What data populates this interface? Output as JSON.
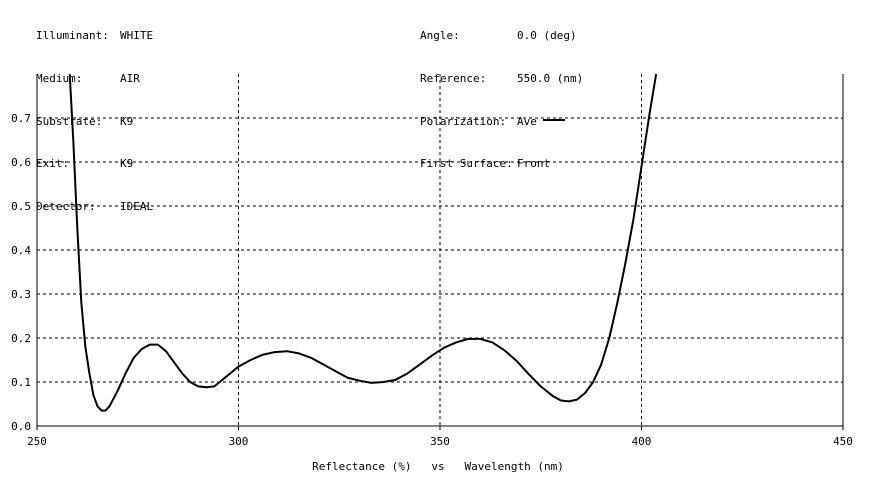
{
  "header": {
    "left": [
      {
        "key": "Illuminant:",
        "value": "WHITE"
      },
      {
        "key": "Medium:",
        "value": "AIR"
      },
      {
        "key": "Substrate:",
        "value": "K9"
      },
      {
        "key": "Exit:",
        "value": "K9"
      },
      {
        "key": "Detector:",
        "value": "IDEAL"
      }
    ],
    "right": [
      {
        "key": "Angle:",
        "value": "0.0 (deg)"
      },
      {
        "key": "Reference:",
        "value": "550.0 (nm)"
      },
      {
        "key": "Polarization:",
        "value": "Ave"
      },
      {
        "key": "First Surface:",
        "value": "Front"
      }
    ]
  },
  "chart_data": {
    "type": "line",
    "title": "",
    "xlabel": "Reflectance (%)   vs   Wavelength (nm)",
    "ylabel": "",
    "xlim": [
      250,
      450
    ],
    "ylim": [
      0.0,
      0.7
    ],
    "x_ticks": [
      250,
      300,
      350,
      400,
      450
    ],
    "x_tick_labels": [
      "250",
      "300",
      "350",
      "400",
      "450"
    ],
    "y_ticks": [
      0.0,
      0.1,
      0.2,
      0.3,
      0.4,
      0.5,
      0.6,
      0.7
    ],
    "y_tick_labels": [
      "0.0",
      "0.1",
      "0.2",
      "0.3",
      "0.4",
      "0.5",
      "0.6",
      "0.7"
    ],
    "grid": true,
    "legend": "Ave",
    "line_color": "#000000",
    "series": [
      {
        "x": [
          258.0,
          259.0,
          260.0,
          261.0,
          262.0,
          263.0,
          264.0,
          265.0,
          266.0,
          267.0,
          268.0,
          270.0,
          272.0,
          274.0,
          276.0,
          278.0,
          280.0,
          282.0,
          284.0,
          286.0,
          288.0,
          290.0,
          292.0,
          294.0,
          296.0,
          298.0,
          300.0,
          303.0,
          306.0,
          309.0,
          312.0,
          315.0,
          318.0,
          321.0,
          324.0,
          327.0,
          330.0,
          333.0,
          336.0,
          339.0,
          342.0,
          345.0,
          348.0,
          351.0,
          354.0,
          357.0,
          360.0,
          363.0,
          366.0,
          369.0,
          372.0,
          375.0,
          378.0,
          380.0,
          382.0,
          384.0,
          386.0,
          388.0,
          390.0,
          392.0,
          394.0,
          396.0,
          398.0,
          400.0,
          402.0,
          404.0
        ],
        "y": [
          0.82,
          0.65,
          0.45,
          0.28,
          0.18,
          0.12,
          0.07,
          0.045,
          0.035,
          0.035,
          0.045,
          0.08,
          0.12,
          0.155,
          0.175,
          0.185,
          0.185,
          0.17,
          0.145,
          0.12,
          0.1,
          0.09,
          0.088,
          0.09,
          0.105,
          0.12,
          0.135,
          0.15,
          0.162,
          0.168,
          0.17,
          0.165,
          0.155,
          0.14,
          0.125,
          0.11,
          0.103,
          0.098,
          0.1,
          0.105,
          0.12,
          0.14,
          0.16,
          0.178,
          0.19,
          0.198,
          0.198,
          0.19,
          0.172,
          0.148,
          0.118,
          0.09,
          0.068,
          0.058,
          0.056,
          0.06,
          0.075,
          0.1,
          0.14,
          0.2,
          0.28,
          0.37,
          0.47,
          0.59,
          0.71,
          0.82
        ]
      }
    ]
  }
}
